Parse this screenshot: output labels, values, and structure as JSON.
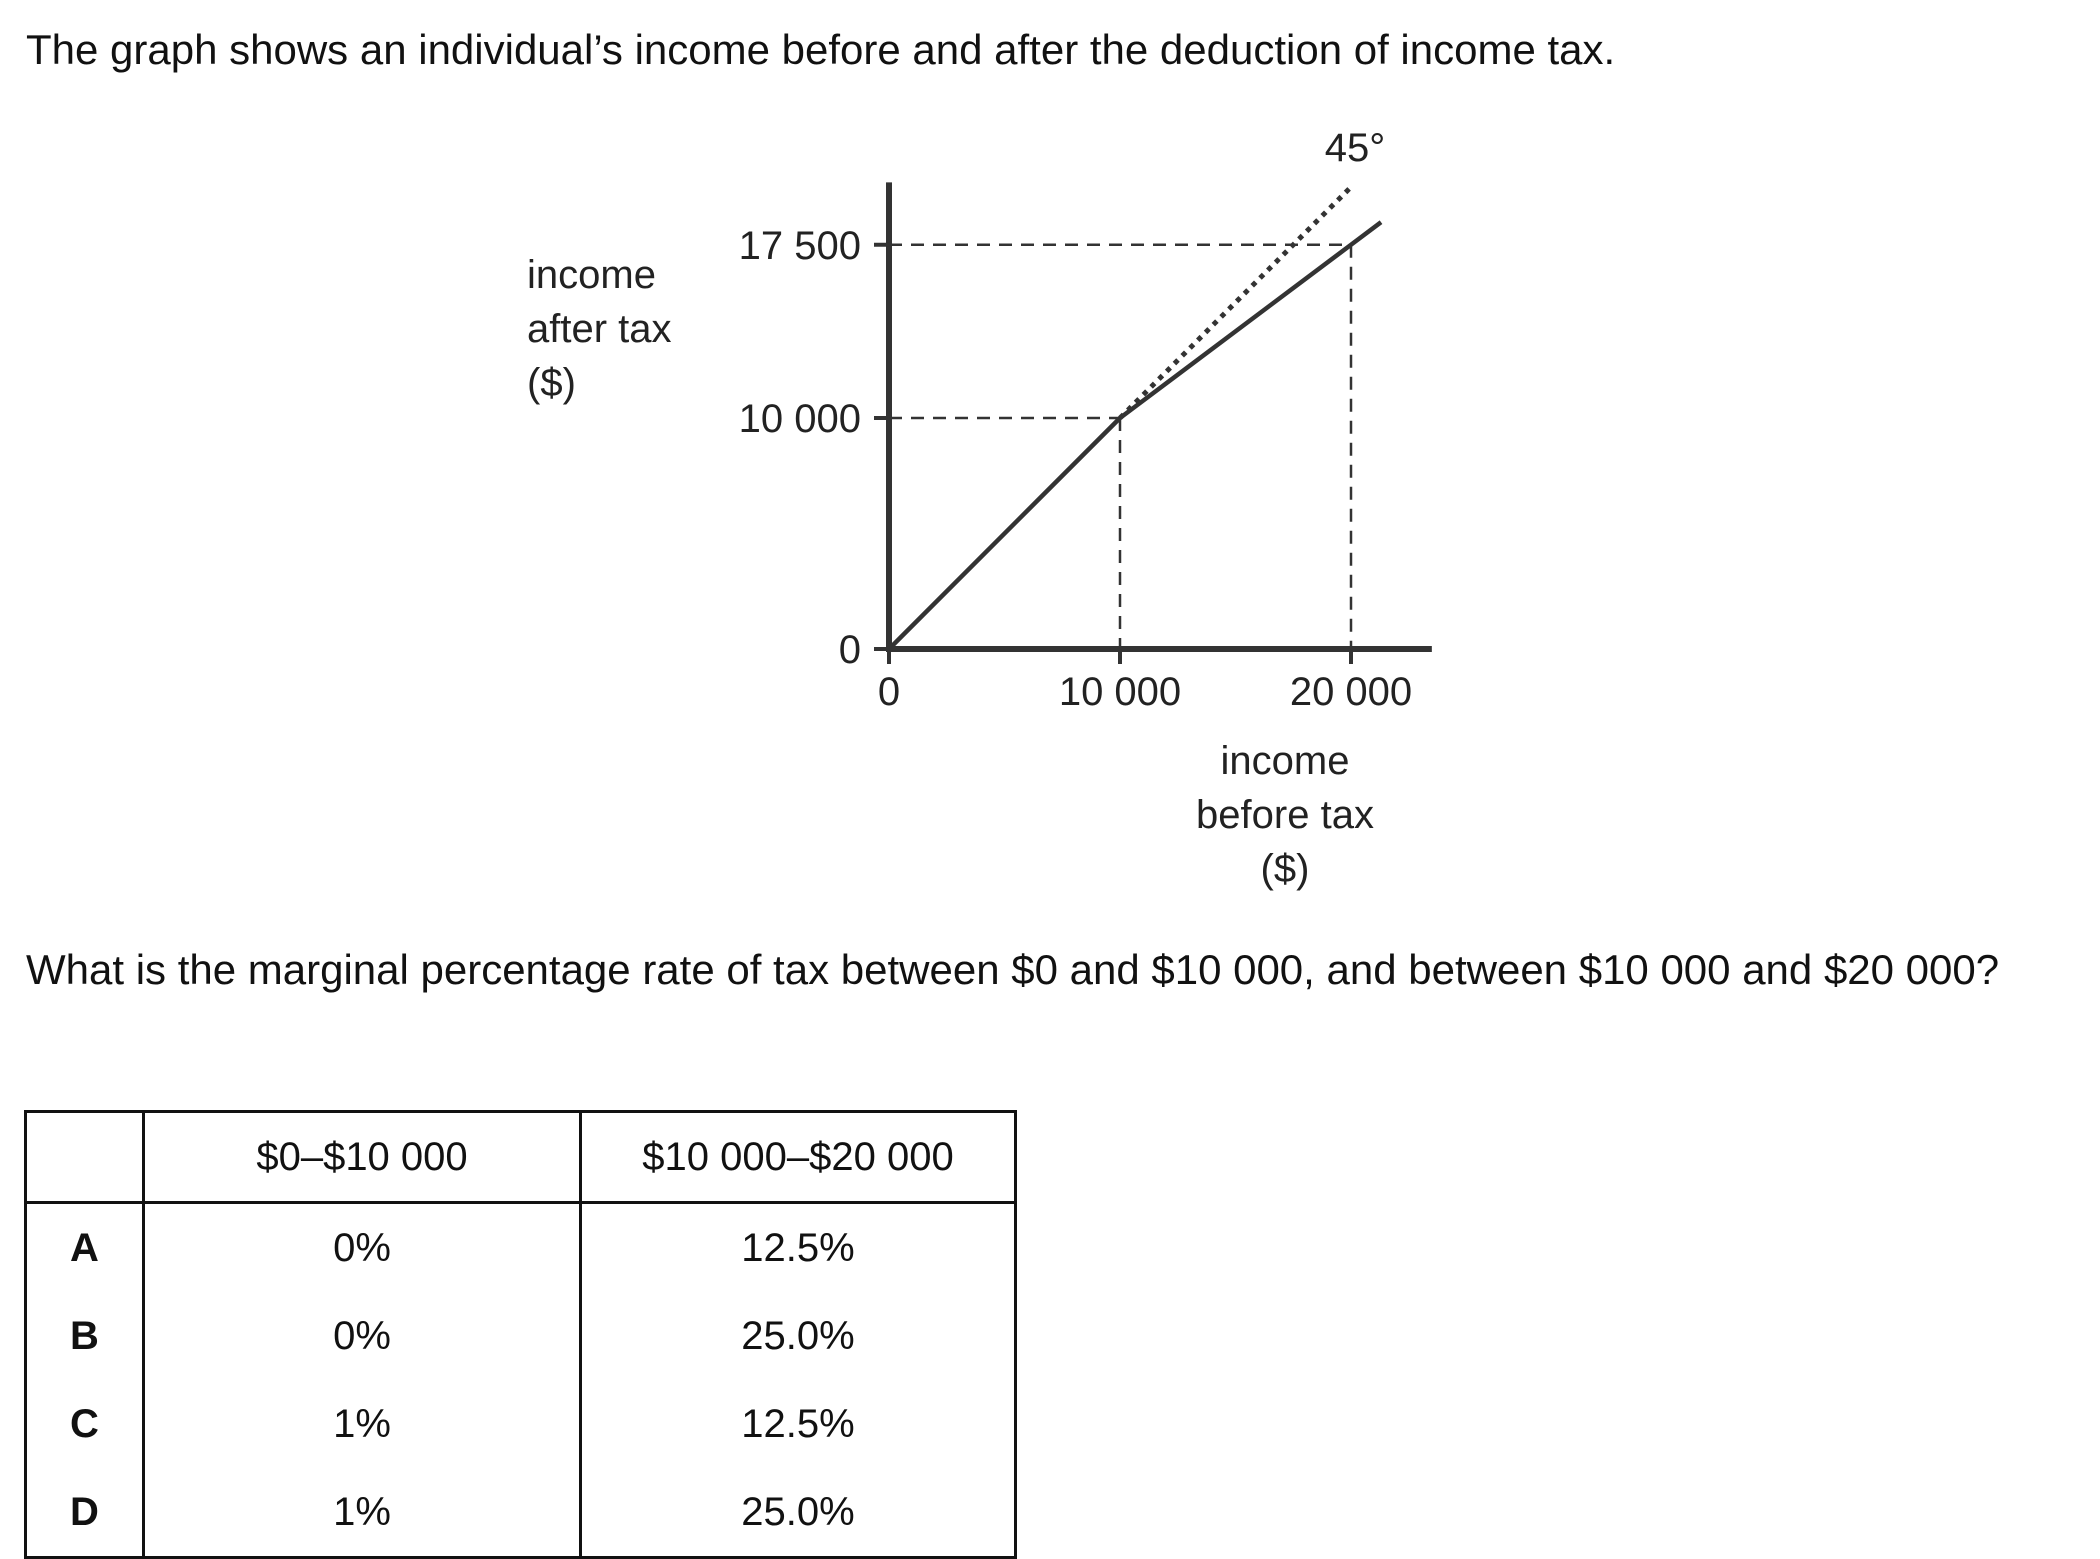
{
  "intro": "The graph shows an individual’s income before and after the deduction of income tax.",
  "chart_data": {
    "type": "line",
    "x_axis_label": [
      "income",
      "before tax",
      "($)"
    ],
    "y_axis_label": [
      "income",
      "after tax",
      "($)"
    ],
    "x_ticks": [
      {
        "value": 0,
        "label": "0"
      },
      {
        "value": 10000,
        "label": "10 000"
      },
      {
        "value": 20000,
        "label": "20 000"
      }
    ],
    "y_ticks": [
      {
        "value": 0,
        "label": "0"
      },
      {
        "value": 10000,
        "label": "10 000"
      },
      {
        "value": 17500,
        "label": "17 500"
      }
    ],
    "xlim": [
      0,
      23500
    ],
    "ylim": [
      0,
      20200
    ],
    "series": [
      {
        "style": "solid",
        "x": [
          0,
          10000,
          20000,
          21300
        ],
        "y": [
          0,
          10000,
          17500,
          18475
        ]
      },
      {
        "name": "45°",
        "style": "dotted",
        "x": [
          10000,
          20000
        ],
        "y": [
          10000,
          20000
        ]
      }
    ],
    "reference_points": [
      {
        "x": 10000,
        "y": 10000
      },
      {
        "x": 20000,
        "y": 17500
      }
    ],
    "grid": false
  },
  "question": "What is the marginal percentage rate of tax between $0 and $10 000, and between $10 000 and $20 000?",
  "table": {
    "headers": [
      "",
      "$0–$10 000",
      "$10 000–$20 000"
    ],
    "rows": [
      {
        "option": "A",
        "col1": "0%",
        "col2": "12.5%"
      },
      {
        "option": "B",
        "col1": "0%",
        "col2": "25.0%"
      },
      {
        "option": "C",
        "col1": "1%",
        "col2": "12.5%"
      },
      {
        "option": "D",
        "col1": "1%",
        "col2": "25.0%"
      }
    ]
  }
}
